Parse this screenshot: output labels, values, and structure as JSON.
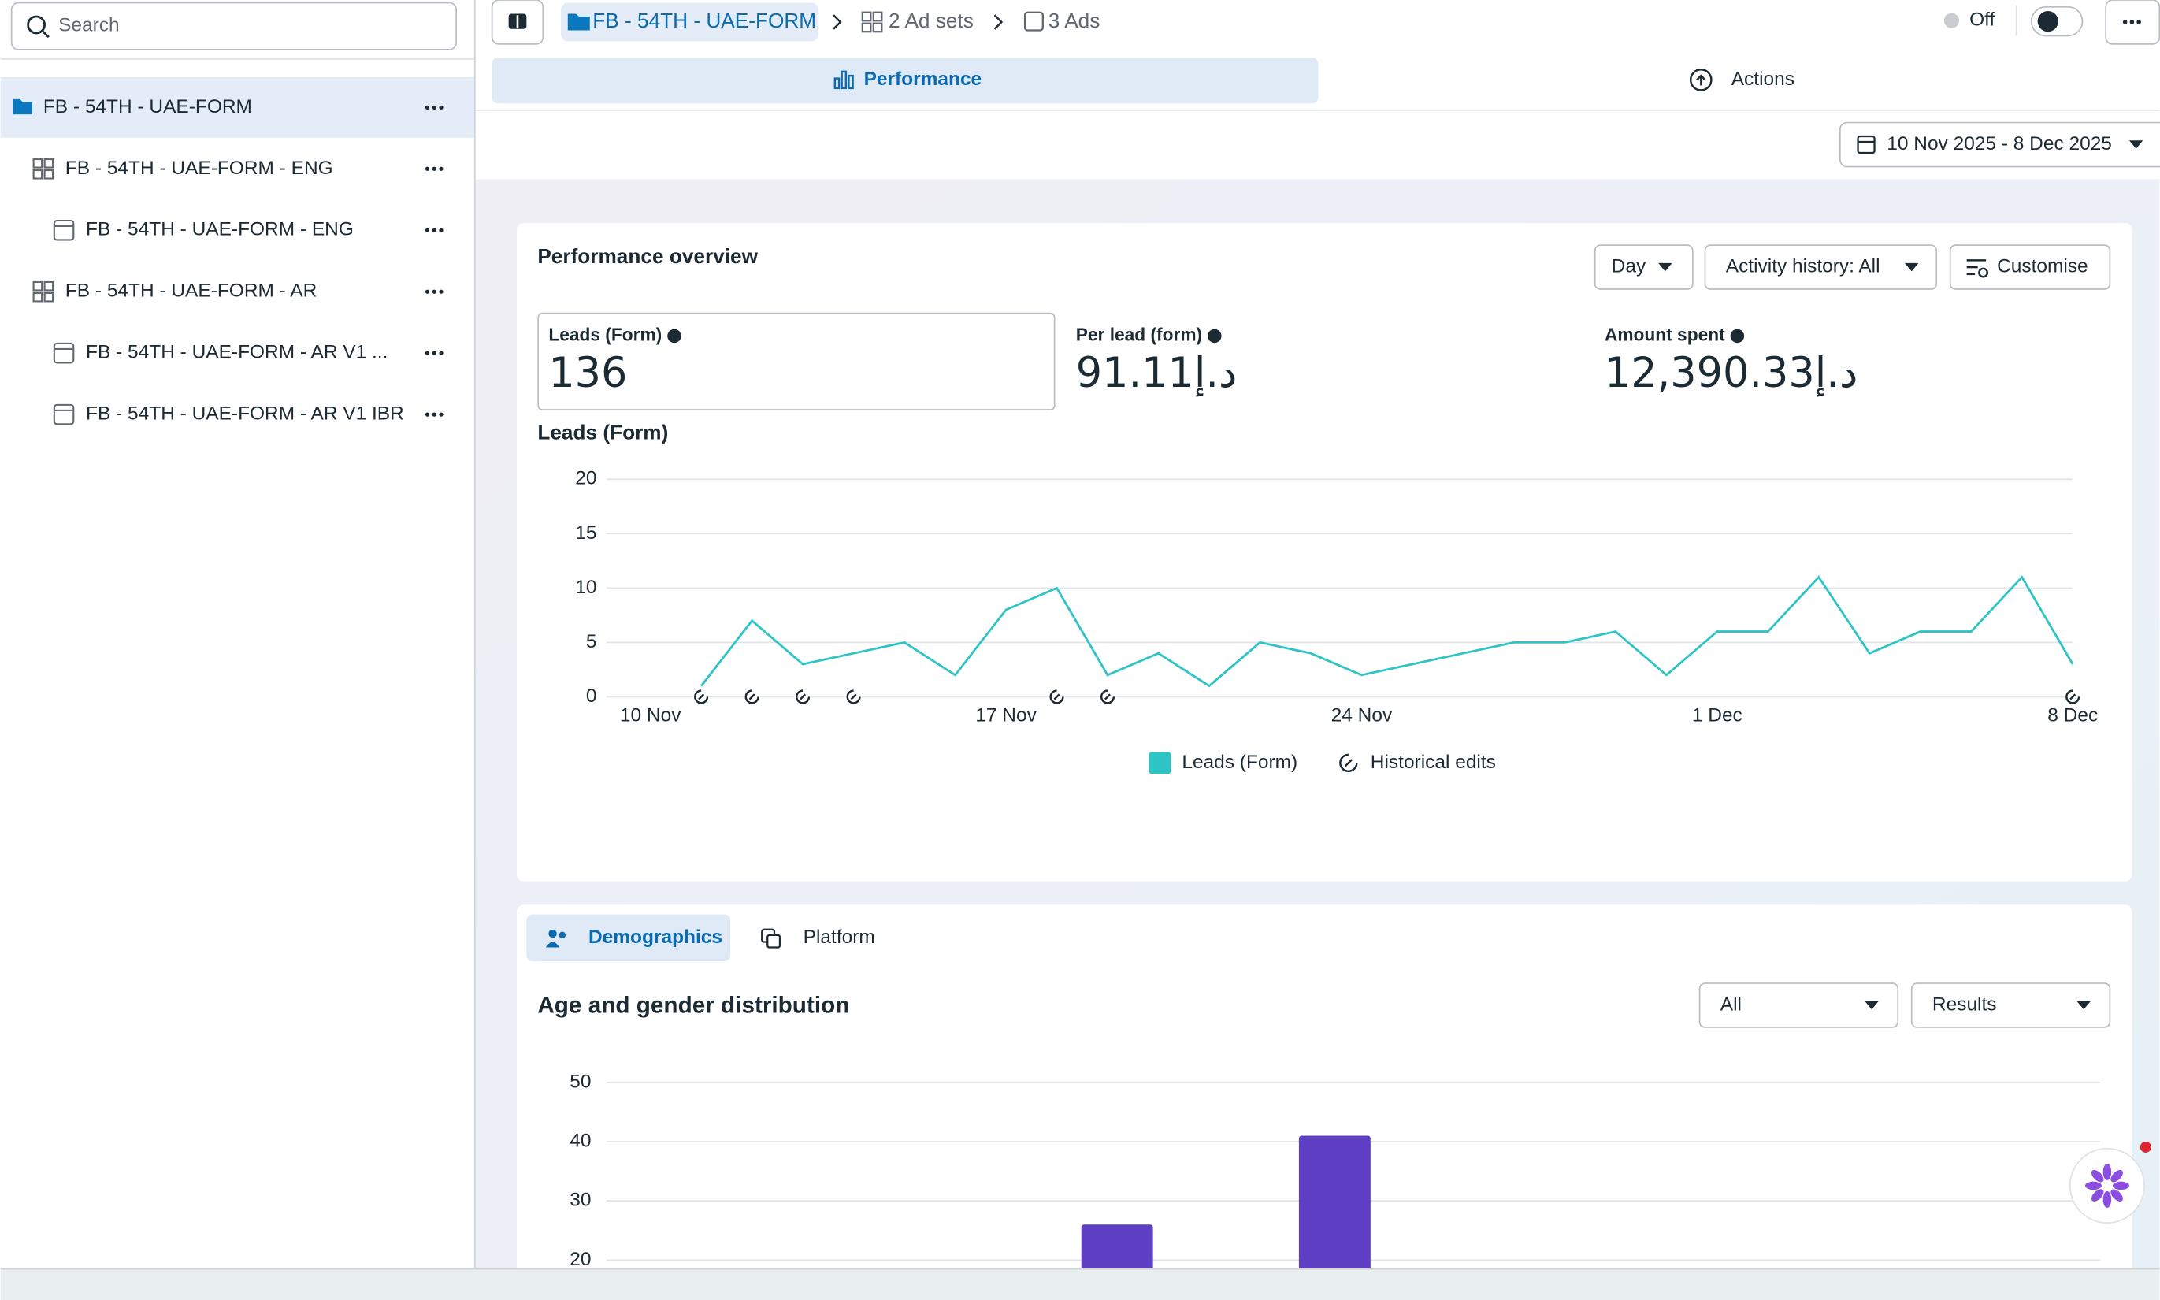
{
  "sidebar": {
    "search_placeholder": "Search",
    "items": [
      {
        "label": "FB - 54TH - UAE-FORM",
        "level": 0,
        "kind": "campaign",
        "selected": true
      },
      {
        "label": "FB - 54TH - UAE-FORM - ENG",
        "level": 1,
        "kind": "adset"
      },
      {
        "label": "FB - 54TH - UAE-FORM - ENG",
        "level": 2,
        "kind": "ad"
      },
      {
        "label": "FB - 54TH - UAE-FORM - AR",
        "level": 1,
        "kind": "adset"
      },
      {
        "label": "FB - 54TH - UAE-FORM - AR V1 ...",
        "level": 2,
        "kind": "ad"
      },
      {
        "label": "FB - 54TH - UAE-FORM - AR V1 IBR",
        "level": 2,
        "kind": "ad"
      }
    ]
  },
  "toolbar": {
    "campaign": "FB - 54TH - UAE-FORM",
    "adsets": "2 Ad sets",
    "ads": "3 Ads",
    "status": "Off"
  },
  "tabs": [
    "Performance",
    "Actions"
  ],
  "date_range": "10 Nov 2025 - 8 Dec 2025",
  "overview": {
    "title": "Performance overview",
    "controls": [
      "Day",
      "Activity history: All",
      "Customise"
    ],
    "metrics": [
      {
        "name": "Leads (Form)",
        "value": 136
      },
      {
        "name": "Per lead (form)",
        "value": 91.11,
        "value_label": "91.11د.إ"
      },
      {
        "name": "Amount spent",
        "value": 12390.33,
        "value_label": "12,390.33د.إ"
      }
    ]
  },
  "chart_data": [
    {
      "type": "line",
      "title": "Leads (Form)",
      "categories": [
        "10 Nov",
        null,
        null,
        null,
        null,
        null,
        null,
        "17 Nov",
        null,
        null,
        null,
        null,
        null,
        null,
        "24 Nov",
        null,
        null,
        null,
        null,
        null,
        null,
        "1 Dec",
        null,
        null,
        null,
        null,
        null,
        null,
        "8 Dec"
      ],
      "series": [
        {
          "name": "Leads (Form)",
          "color": "#2ec4c6",
          "values": [
            null,
            1,
            7,
            3,
            4,
            5,
            2,
            8,
            10,
            2,
            4,
            1,
            5,
            4,
            2,
            3,
            4,
            5,
            5,
            6,
            2,
            6,
            6,
            11,
            4,
            6,
            6,
            11,
            3
          ]
        }
      ],
      "historical_edits": {
        "name": "Historical edits",
        "indices": [
          1,
          2,
          3,
          4,
          8,
          9,
          28
        ]
      },
      "ylim": [
        0,
        20
      ],
      "yticks": [
        0,
        5,
        10,
        15,
        20
      ],
      "grid": true
    },
    {
      "type": "bar",
      "title": "Age and gender distribution",
      "tabs": [
        "Demographics",
        "Platform"
      ],
      "filters": [
        "All",
        "Results"
      ],
      "categories": [
        null,
        null
      ],
      "values": [
        26,
        41
      ],
      "color": "#5e3ec2",
      "ylim": [
        18.6,
        52
      ],
      "yticks": [
        20,
        30,
        40,
        50
      ],
      "grid": true
    }
  ]
}
